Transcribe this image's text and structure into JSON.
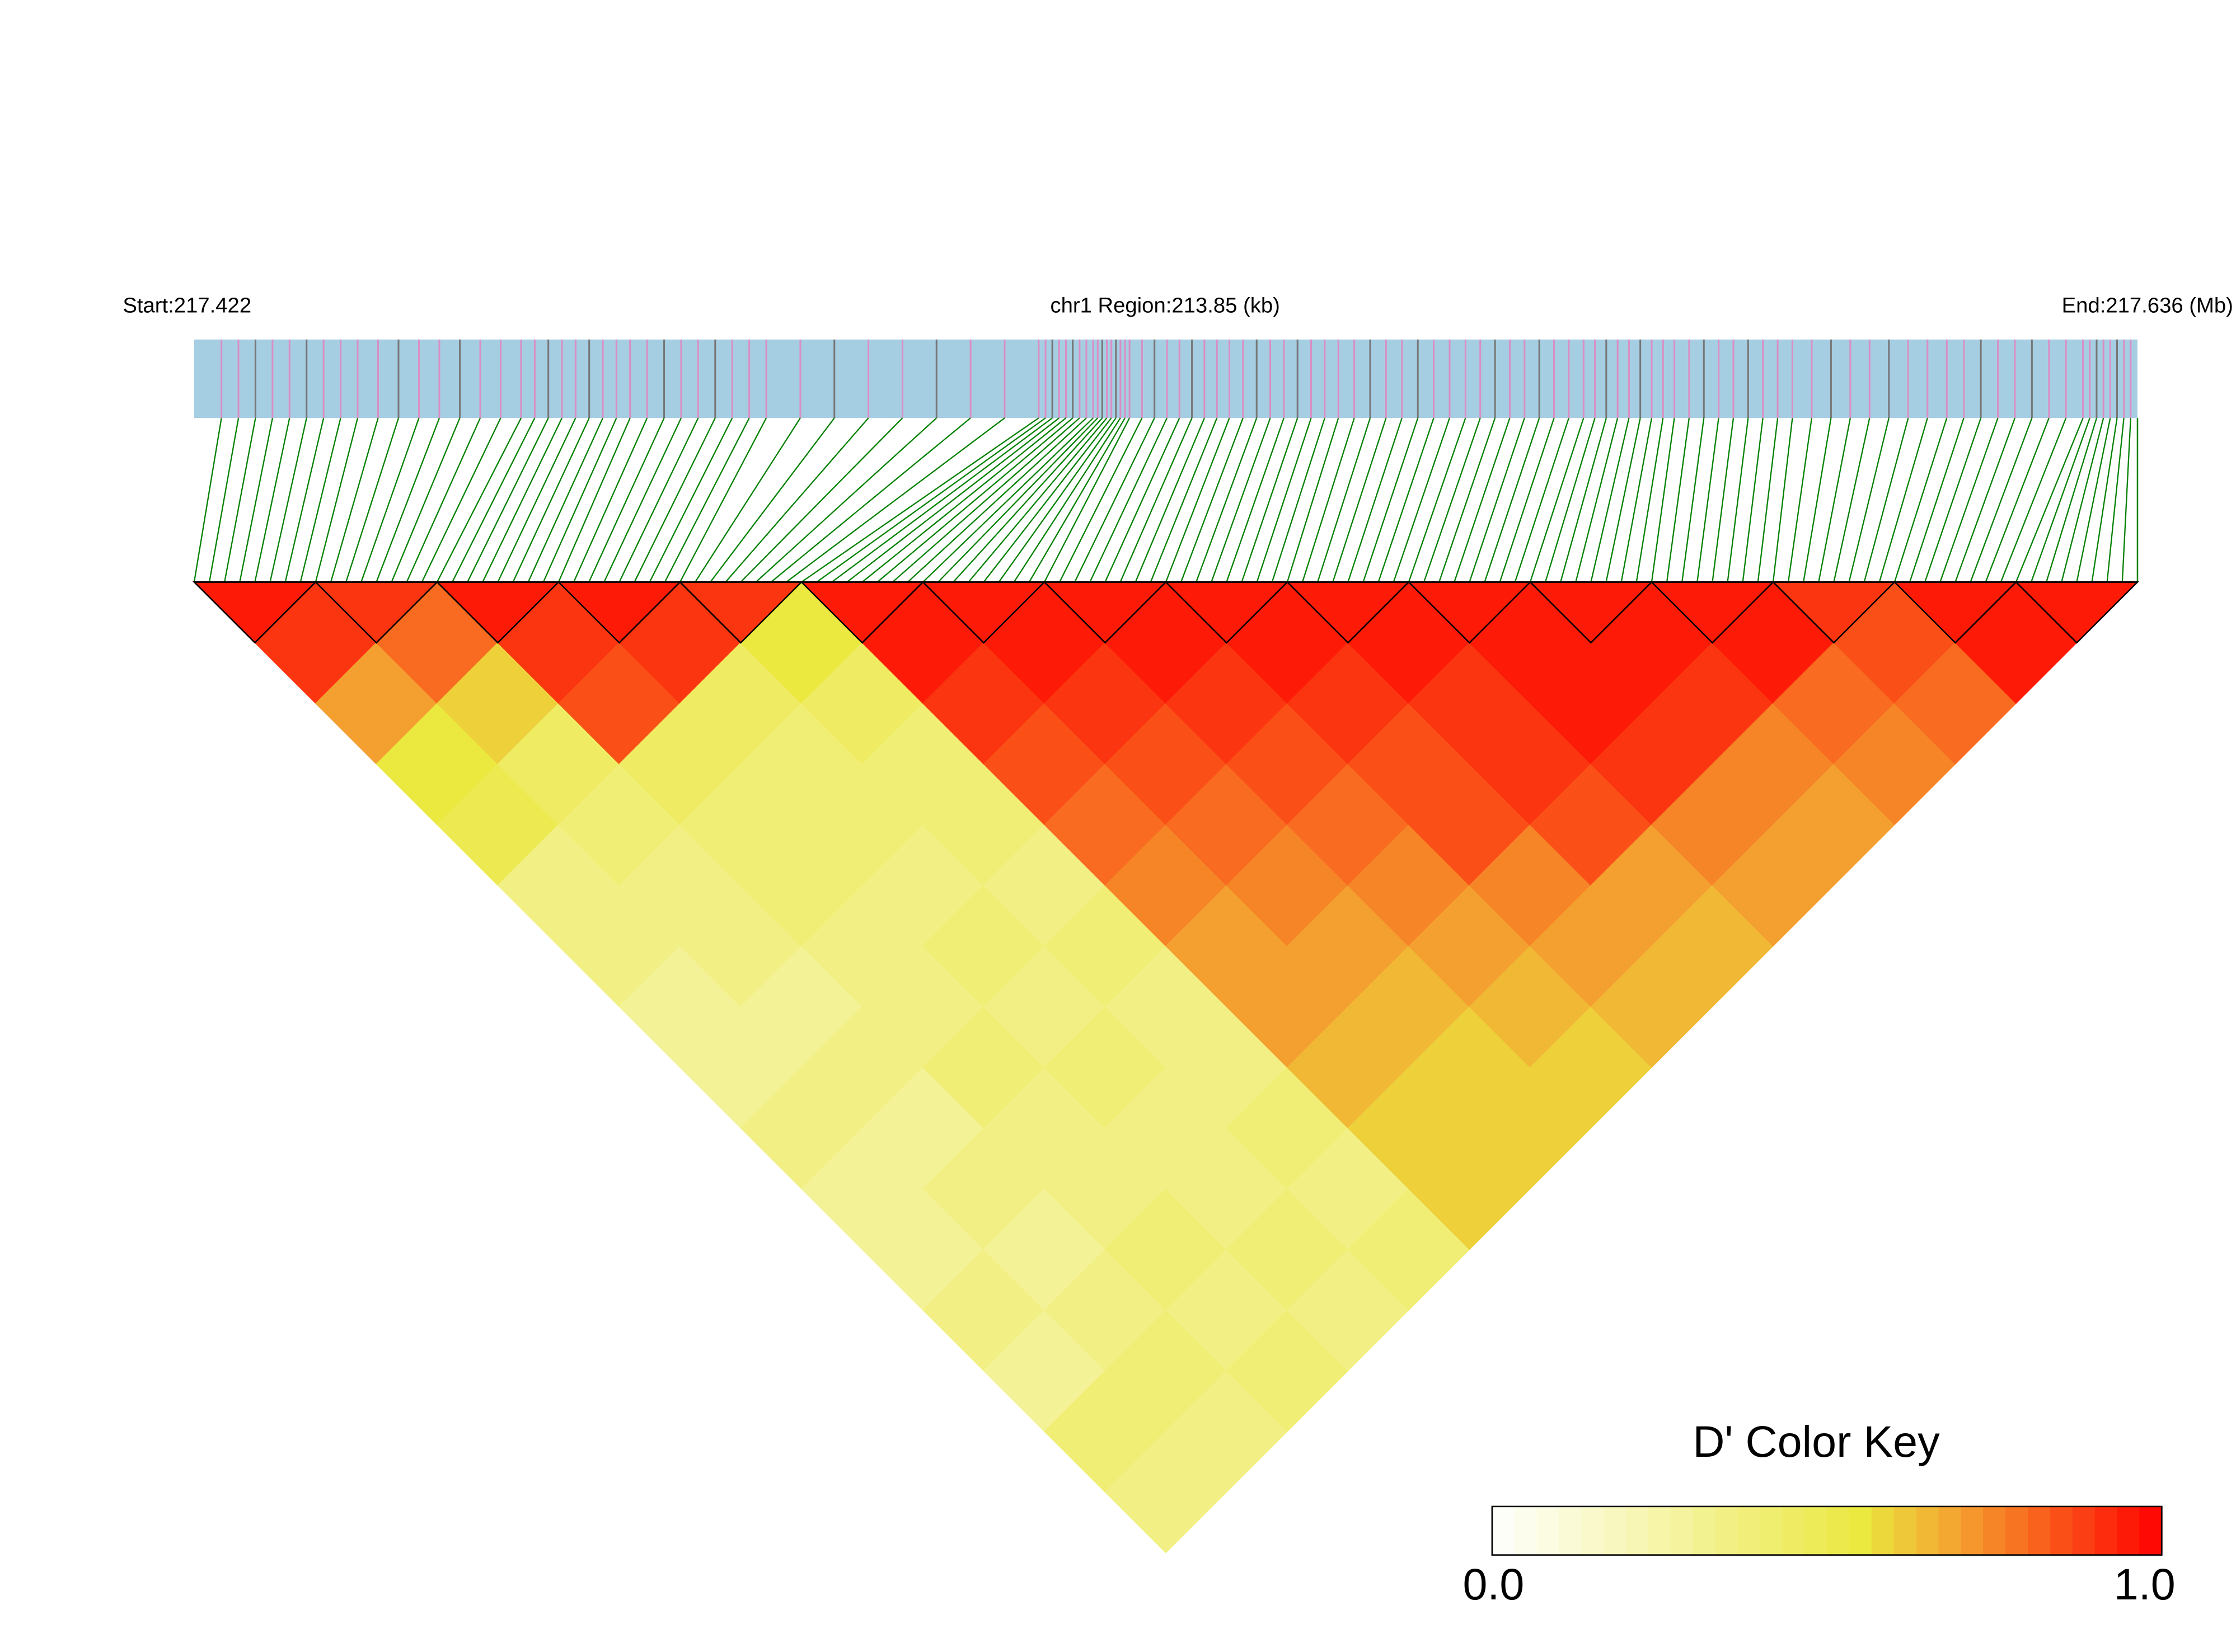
{
  "chart_data": {
    "type": "ld-heatmap",
    "start_label": "Start:217.422",
    "region_label": "chr1 Region:213.85 (kb)",
    "end_label": "End:217.636 (Mb)",
    "key_title": "D' Color Key",
    "xlim": [
      217.422,
      217.636
    ],
    "positions": [
      217.425,
      217.44,
      217.458,
      217.47,
      217.485,
      217.515,
      217.521,
      217.525,
      217.536,
      217.548,
      217.562,
      217.575,
      217.585,
      217.598,
      217.615,
      217.63
    ],
    "diagonal": [
      0.95,
      0.9,
      0.95,
      0.95,
      0.9,
      0.95,
      0.95,
      0.95,
      0.95,
      0.95,
      0.95,
      0.95,
      0.95,
      0.9,
      0.95,
      0.95
    ],
    "matrix": [
      [
        0.9,
        0.7,
        0.55,
        0.5,
        0.35,
        0.35,
        0.3,
        0.3,
        0.35,
        0.3,
        0.3,
        0.35,
        0.3,
        0.4,
        0.35
      ],
      [
        0.8,
        0.6,
        0.45,
        0.4,
        0.35,
        0.35,
        0.3,
        0.35,
        0.3,
        0.35,
        0.3,
        0.35,
        0.4,
        0.35
      ],
      [
        0.9,
        0.85,
        0.45,
        0.4,
        0.4,
        0.35,
        0.35,
        0.4,
        0.35,
        0.35,
        0.4,
        0.35,
        0.4
      ],
      [
        0.9,
        0.45,
        0.4,
        0.4,
        0.35,
        0.4,
        0.35,
        0.4,
        0.35,
        0.35,
        0.4,
        0.35
      ],
      [
        0.55,
        0.45,
        0.4,
        0.4,
        0.35,
        0.4,
        0.35,
        0.35,
        0.4,
        0.35,
        0.4
      ],
      [
        0.95,
        0.9,
        0.85,
        0.8,
        0.75,
        0.7,
        0.7,
        0.65,
        0.6,
        0.6
      ],
      [
        0.95,
        0.9,
        0.85,
        0.8,
        0.75,
        0.7,
        0.65,
        0.6,
        0.6
      ],
      [
        0.95,
        0.9,
        0.85,
        0.8,
        0.75,
        0.7,
        0.65,
        0.6
      ],
      [
        0.95,
        0.9,
        0.85,
        0.85,
        0.75,
        0.7,
        0.65
      ],
      [
        0.95,
        0.9,
        0.9,
        0.85,
        0.7,
        0.65
      ],
      [
        0.95,
        0.95,
        0.9,
        0.75,
        0.7
      ],
      [
        0.95,
        0.9,
        0.75,
        0.7
      ],
      [
        0.95,
        0.8,
        0.75
      ],
      [
        0.85,
        0.8
      ],
      [
        0.95
      ]
    ],
    "zlim": [
      0,
      1
    ],
    "zticks": [
      {
        "value": 0,
        "label": "0.0"
      },
      {
        "value": 1,
        "label": "1.0"
      }
    ],
    "color_stops": [
      [
        0,
        "#ffffff"
      ],
      [
        0.55,
        "#ebe840"
      ],
      [
        0.7,
        "#f4a030"
      ],
      [
        1,
        "#ff0000"
      ]
    ],
    "track_color": "#a6cee3",
    "stripe_color": "#d98fc4",
    "line_color": "#008000"
  }
}
